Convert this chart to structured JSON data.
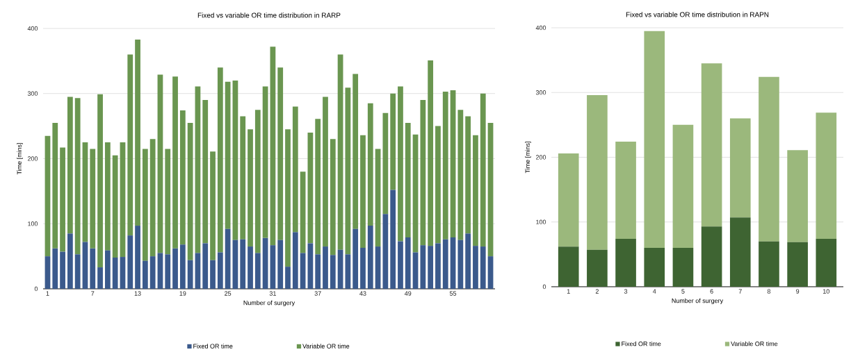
{
  "chart_data": [
    {
      "type": "bar",
      "title": "Fixed vs variable OR time distribution in RARP",
      "xlabel": "Number of surgery",
      "ylabel": "Time [mins]",
      "categories": [
        "1",
        null,
        null,
        null,
        null,
        null,
        "7",
        null,
        null,
        null,
        null,
        null,
        "13",
        null,
        null,
        null,
        null,
        null,
        "19",
        null,
        null,
        null,
        null,
        null,
        "25",
        null,
        null,
        null,
        null,
        null,
        "31",
        null,
        null,
        null,
        null,
        null,
        "37",
        null,
        null,
        null,
        null,
        null,
        "43",
        null,
        null,
        null,
        null,
        null,
        "49",
        null,
        null,
        null,
        null,
        null,
        "55",
        null,
        null,
        null,
        null,
        null
      ],
      "stacked": true,
      "ylim": [
        0,
        400
      ],
      "yticks": [
        0,
        100,
        200,
        300,
        400
      ],
      "grid": "y",
      "legend": "bottom",
      "series": [
        {
          "name": "Fixed OR time",
          "color": "#3b5a8c",
          "values": [
            50,
            62,
            57,
            85,
            53,
            72,
            62,
            33,
            59,
            48,
            49,
            82,
            97,
            43,
            50,
            55,
            53,
            62,
            68,
            44,
            55,
            70,
            44,
            56,
            92,
            75,
            76,
            65,
            55,
            78,
            67,
            75,
            34,
            87,
            55,
            70,
            53,
            65,
            52,
            60,
            53,
            92,
            63,
            97,
            65,
            115,
            152,
            73,
            79,
            56,
            67,
            66,
            70,
            76,
            79,
            75,
            85,
            66,
            65,
            50
          ]
        },
        {
          "name": "Variable OR time",
          "color": "#6a9650",
          "values": [
            185,
            193,
            160,
            210,
            240,
            153,
            153,
            266,
            166,
            157,
            176,
            278,
            286,
            172,
            180,
            274,
            162,
            264,
            206,
            211,
            256,
            220,
            167,
            284,
            226,
            245,
            189,
            180,
            220,
            233,
            305,
            265,
            211,
            193,
            125,
            170,
            208,
            230,
            178,
            300,
            256,
            238,
            173,
            188,
            150,
            155,
            148,
            238,
            176,
            181,
            223,
            285,
            180,
            227,
            226,
            200,
            180,
            170,
            235,
            205
          ]
        }
      ]
    },
    {
      "type": "bar",
      "title": "Fixed vs variable OR time distribution in RAPN",
      "xlabel": "Number of surgery",
      "ylabel": "Time [mins]",
      "categories": [
        "1",
        "2",
        "3",
        "4",
        "5",
        "6",
        "7",
        "8",
        "9",
        "10"
      ],
      "stacked": true,
      "ylim": [
        0,
        400
      ],
      "yticks": [
        0,
        100,
        200,
        300,
        400
      ],
      "grid": "y",
      "legend": "bottom",
      "series": [
        {
          "name": "Fixed OR time",
          "color": "#3e6432",
          "values": [
            62,
            57,
            74,
            60,
            60,
            93,
            107,
            70,
            69,
            74
          ]
        },
        {
          "name": "Variable OR time",
          "color": "#9bb87c",
          "values": [
            144,
            239,
            150,
            335,
            190,
            252,
            153,
            254,
            142,
            195
          ]
        }
      ]
    }
  ]
}
